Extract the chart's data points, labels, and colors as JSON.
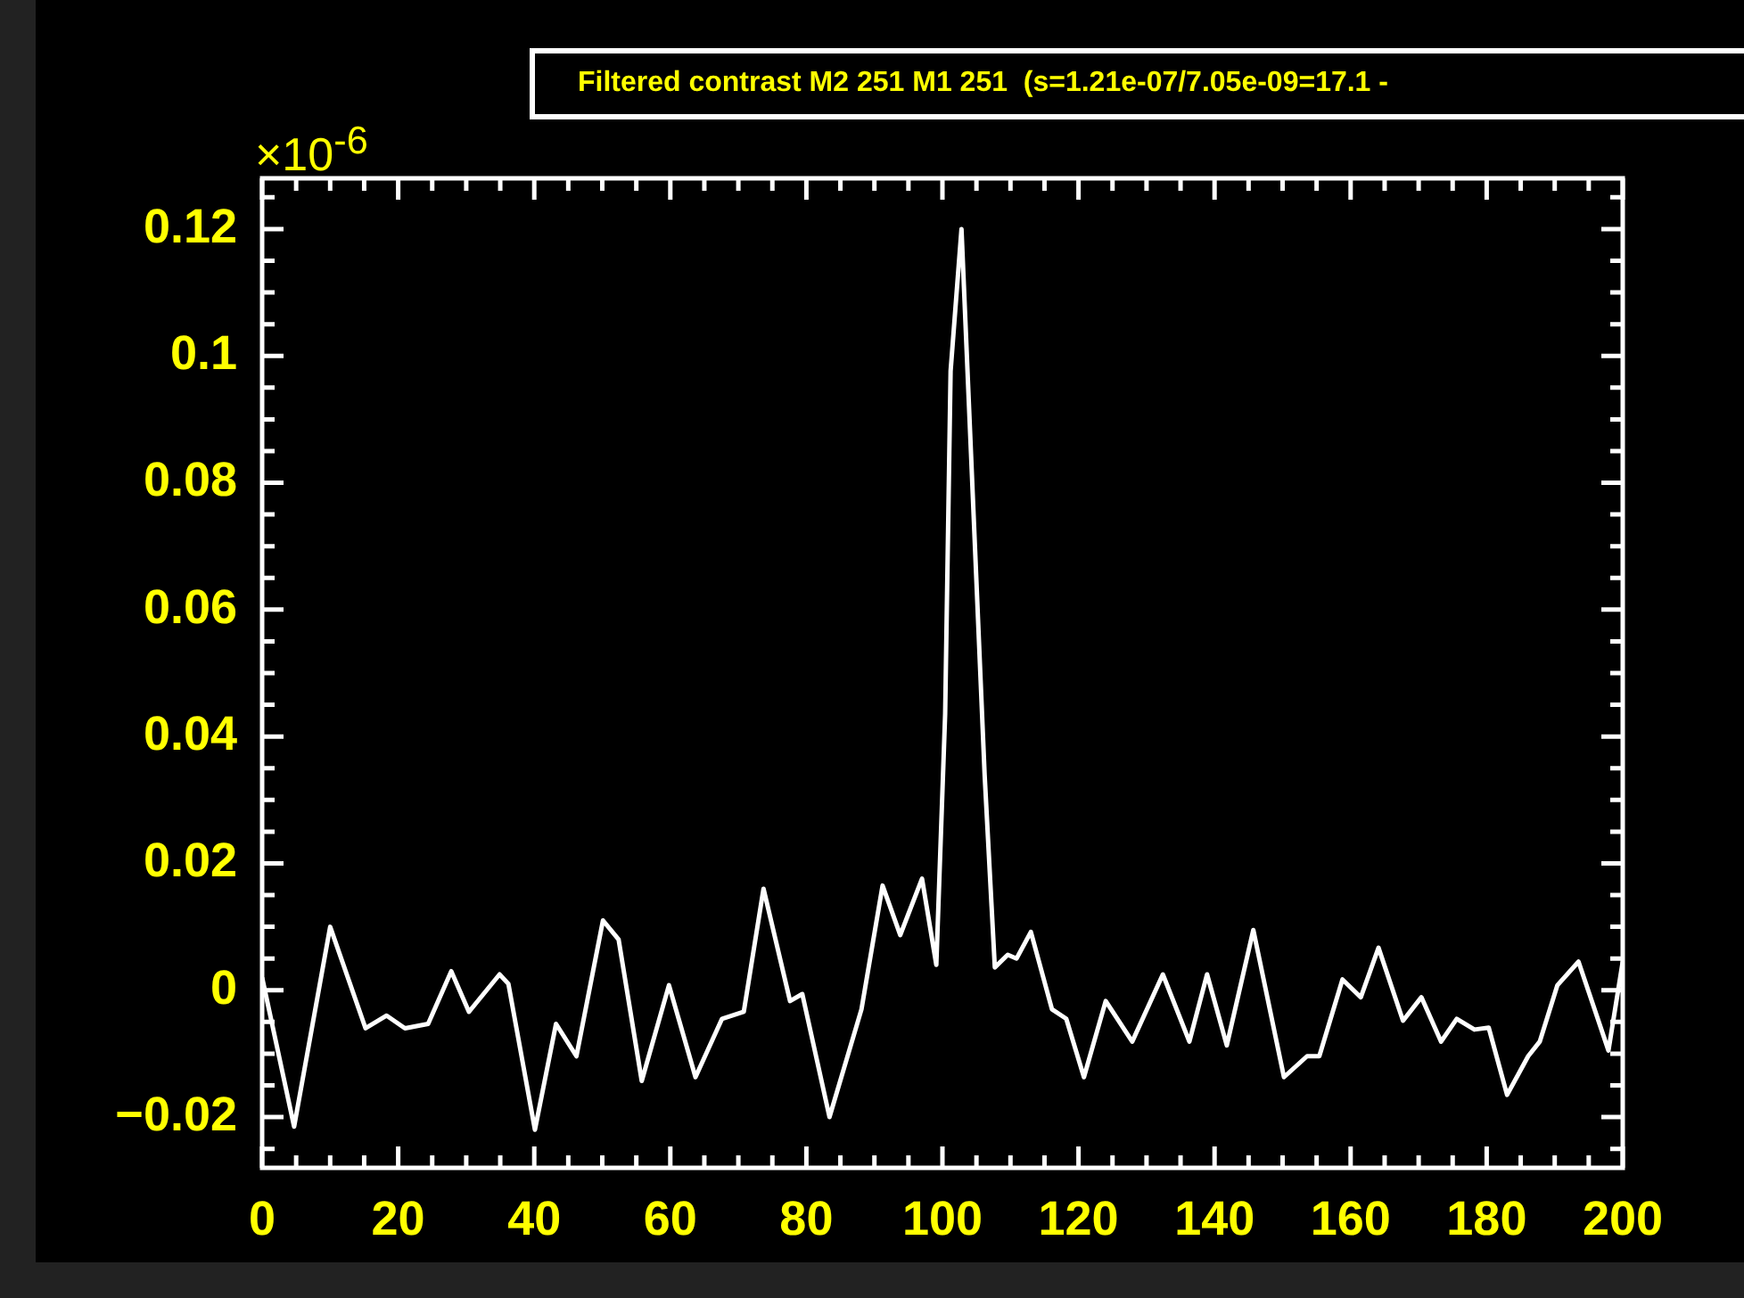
{
  "chart_data": {
    "type": "line",
    "title": "Filtered contrast M2 251 M1 251  (s=1.21e-07/7.05e-09=17.1 -",
    "annotations": [
      "×10$^{-6}$"
    ],
    "series": [
      {
        "color": "#ffffff",
        "x": [
          0,
          4.7,
          10,
          15.2,
          18.3,
          21,
          24.4,
          27.8,
          30.4,
          34.9,
          36.2,
          40.1,
          43.2,
          46.2,
          50.1,
          52.4,
          55.8,
          59.8,
          63.7,
          67.6,
          70.8,
          73.7,
          77.6,
          79.4,
          83.4,
          88.1,
          91.2,
          93.8,
          97,
          99.1,
          100.4,
          101.2,
          102.8,
          106.2,
          107.7,
          109.6,
          110.9,
          113,
          116.1,
          118.2,
          120.8,
          124,
          127.9,
          132.4,
          136.3,
          138.9,
          141.8,
          145.7,
          150.2,
          153.6,
          155.4,
          158.8,
          161.5,
          164.1,
          167.7,
          170.4,
          173.3,
          175.6,
          178.2,
          180.3,
          183,
          186.1,
          187.8,
          190.4,
          193.5,
          197.9,
          200
        ],
        "values": [
          0.002,
          -0.0215,
          0.01,
          -0.006,
          -0.004,
          -0.006,
          -0.0053,
          0.003,
          -0.0034,
          0.0025,
          0.001,
          -0.022,
          -0.0053,
          -0.0104,
          0.011,
          0.008,
          -0.0143,
          0.0008,
          -0.0137,
          -0.0045,
          -0.0034,
          0.016,
          -0.0017,
          -0.0006,
          -0.02,
          -0.003,
          0.0165,
          0.0087,
          0.0176,
          0.004,
          0.0436,
          0.0976,
          0.12,
          0.034,
          0.0036,
          0.0056,
          0.005,
          0.0092,
          -0.003,
          -0.0045,
          -0.0137,
          -0.0017,
          -0.0081,
          0.0025,
          -0.0081,
          0.0025,
          -0.0087,
          0.0095,
          -0.0137,
          -0.0104,
          -0.0104,
          0.0017,
          -0.0011,
          0.0067,
          -0.0048,
          -0.0011,
          -0.0081,
          -0.0045,
          -0.0062,
          -0.0059,
          -0.0165,
          -0.0104,
          -0.0081,
          0.0008,
          0.0045,
          -0.0095,
          0.0045
        ]
      }
    ],
    "xlim": [
      0,
      200
    ],
    "ylim": [
      -0.028,
      0.128
    ],
    "xticks": [
      0,
      {
        "value": 5,
        "label": null
      },
      {
        "value": 10,
        "label": null
      },
      {
        "value": 15,
        "label": null
      },
      20,
      {
        "value": 25,
        "label": null
      },
      {
        "value": 30,
        "label": null
      },
      {
        "value": 35,
        "label": null
      },
      40,
      {
        "value": 45,
        "label": null
      },
      {
        "value": 50,
        "label": null
      },
      {
        "value": 55,
        "label": null
      },
      60,
      {
        "value": 65,
        "label": null
      },
      {
        "value": 70,
        "label": null
      },
      {
        "value": 75,
        "label": null
      },
      80,
      {
        "value": 85,
        "label": null
      },
      {
        "value": 90,
        "label": null
      },
      {
        "value": 95,
        "label": null
      },
      100,
      {
        "value": 105,
        "label": null
      },
      {
        "value": 110,
        "label": null
      },
      {
        "value": 115,
        "label": null
      },
      120,
      {
        "value": 125,
        "label": null
      },
      {
        "value": 130,
        "label": null
      },
      {
        "value": 135,
        "label": null
      },
      140,
      {
        "value": 145,
        "label": null
      },
      {
        "value": 150,
        "label": null
      },
      {
        "value": 155,
        "label": null
      },
      160,
      {
        "value": 165,
        "label": null
      },
      {
        "value": 170,
        "label": null
      },
      {
        "value": 175,
        "label": null
      },
      180,
      {
        "value": 185,
        "label": null
      },
      {
        "value": 190,
        "label": null
      },
      {
        "value": 195,
        "label": null
      },
      200
    ],
    "yticks": [
      {
        "value": -0.025,
        "label": null
      },
      {
        "value": -0.02,
        "label": "−0.02"
      },
      {
        "value": -0.015,
        "label": null
      },
      {
        "value": -0.01,
        "label": null
      },
      {
        "value": -0.005,
        "label": null
      },
      0,
      {
        "value": 0.005,
        "label": null
      },
      {
        "value": 0.01,
        "label": null
      },
      {
        "value": 0.015,
        "label": null
      },
      0.02,
      {
        "value": 0.025,
        "label": null
      },
      {
        "value": 0.03,
        "label": null
      },
      {
        "value": 0.035,
        "label": null
      },
      0.04,
      {
        "value": 0.045,
        "label": null
      },
      {
        "value": 0.05,
        "label": null
      },
      {
        "value": 0.055,
        "label": null
      },
      0.06,
      {
        "value": 0.065,
        "label": null
      },
      {
        "value": 0.07,
        "label": null
      },
      {
        "value": 0.075,
        "label": null
      },
      0.08,
      {
        "value": 0.085,
        "label": null
      },
      {
        "value": 0.09,
        "label": null
      },
      {
        "value": 0.095,
        "label": null
      },
      0.1,
      {
        "value": 0.105,
        "label": null
      },
      {
        "value": 0.11,
        "label": null
      },
      {
        "value": 0.115,
        "label": null
      },
      0.12,
      {
        "value": 0.125,
        "label": null
      }
    ]
  }
}
